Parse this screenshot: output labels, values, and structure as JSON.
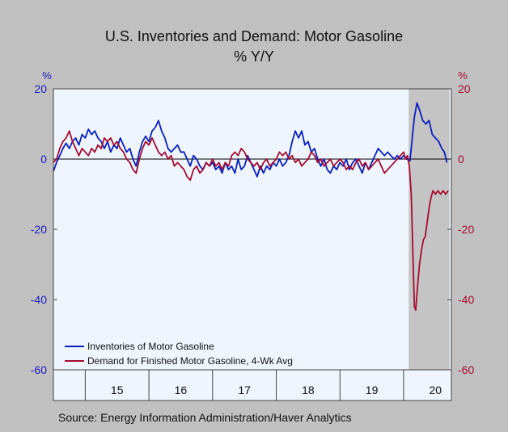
{
  "chart_data": {
    "type": "line",
    "title": "U.S. Inventories and Demand: Motor Gasoline",
    "subtitle": "% Y/Y",
    "left_unit": "%",
    "right_unit": "%",
    "ylim": [
      -60,
      20
    ],
    "yticks": [
      -60,
      -40,
      -20,
      0,
      20
    ],
    "x_range": [
      2014.5,
      2020.75
    ],
    "x_tick_labels": [
      {
        "label": "15",
        "x": 2015
      },
      {
        "label": "16",
        "x": 2016
      },
      {
        "label": "17",
        "x": 2017
      },
      {
        "label": "18",
        "x": 2018
      },
      {
        "label": "19",
        "x": 2019
      },
      {
        "label": "20",
        "x": 2020
      }
    ],
    "recession_shading": [
      2020.08,
      2020.72
    ],
    "grid": false,
    "legend_position": "bottom-left",
    "source": "Source:  Energy Information Administration/Haver Analytics",
    "colors": {
      "inventories": "#0a1fbf",
      "demand": "#a50c2e",
      "plot_bg": "#eef5fd",
      "page_bg": "#c0c0c0",
      "shade": "#c4c4c4",
      "left_axis": "#1a1abf",
      "right_axis": "#a50c2e"
    },
    "series": [
      {
        "name": "Inventories of Motor Gasoline",
        "color": "#0a1fbf",
        "points": [
          [
            2014.5,
            -3.5
          ],
          [
            2014.55,
            -1
          ],
          [
            2014.6,
            1
          ],
          [
            2014.65,
            3
          ],
          [
            2014.7,
            4.5
          ],
          [
            2014.75,
            3
          ],
          [
            2014.8,
            5
          ],
          [
            2014.85,
            6
          ],
          [
            2014.9,
            4
          ],
          [
            2014.95,
            7
          ],
          [
            2015.0,
            6
          ],
          [
            2015.05,
            8.5
          ],
          [
            2015.1,
            7
          ],
          [
            2015.15,
            8
          ],
          [
            2015.2,
            6
          ],
          [
            2015.25,
            5
          ],
          [
            2015.3,
            3
          ],
          [
            2015.35,
            5
          ],
          [
            2015.4,
            2
          ],
          [
            2015.45,
            4
          ],
          [
            2015.5,
            3
          ],
          [
            2015.55,
            6
          ],
          [
            2015.6,
            4
          ],
          [
            2015.65,
            2
          ],
          [
            2015.7,
            3
          ],
          [
            2015.75,
            0
          ],
          [
            2015.8,
            -2
          ],
          [
            2015.85,
            2
          ],
          [
            2015.9,
            5
          ],
          [
            2015.95,
            6.5
          ],
          [
            2016.0,
            5
          ],
          [
            2016.05,
            8
          ],
          [
            2016.1,
            9
          ],
          [
            2016.15,
            11
          ],
          [
            2016.2,
            8
          ],
          [
            2016.25,
            6
          ],
          [
            2016.3,
            3
          ],
          [
            2016.35,
            2
          ],
          [
            2016.4,
            3
          ],
          [
            2016.45,
            4
          ],
          [
            2016.5,
            2
          ],
          [
            2016.55,
            2
          ],
          [
            2016.6,
            0
          ],
          [
            2016.65,
            -2
          ],
          [
            2016.7,
            1
          ],
          [
            2016.75,
            0
          ],
          [
            2016.8,
            -2
          ],
          [
            2016.85,
            -3
          ],
          [
            2016.9,
            -1
          ],
          [
            2016.95,
            -2
          ],
          [
            2017.0,
            -1
          ],
          [
            2017.05,
            -3
          ],
          [
            2017.1,
            -2
          ],
          [
            2017.15,
            -4
          ],
          [
            2017.2,
            -1
          ],
          [
            2017.25,
            -3
          ],
          [
            2017.3,
            -2
          ],
          [
            2017.35,
            -4
          ],
          [
            2017.4,
            0
          ],
          [
            2017.45,
            -3
          ],
          [
            2017.5,
            -2
          ],
          [
            2017.55,
            1
          ],
          [
            2017.6,
            -1
          ],
          [
            2017.65,
            -3
          ],
          [
            2017.7,
            -5
          ],
          [
            2017.75,
            -2
          ],
          [
            2017.8,
            -4
          ],
          [
            2017.85,
            -2
          ],
          [
            2017.9,
            -3
          ],
          [
            2017.95,
            -1
          ],
          [
            2018.0,
            -2
          ],
          [
            2018.05,
            0
          ],
          [
            2018.1,
            -2
          ],
          [
            2018.15,
            -1
          ],
          [
            2018.2,
            1
          ],
          [
            2018.25,
            5
          ],
          [
            2018.3,
            8
          ],
          [
            2018.35,
            6
          ],
          [
            2018.4,
            8
          ],
          [
            2018.45,
            4
          ],
          [
            2018.5,
            5
          ],
          [
            2018.55,
            2
          ],
          [
            2018.6,
            3
          ],
          [
            2018.65,
            0
          ],
          [
            2018.7,
            -2
          ],
          [
            2018.75,
            0
          ],
          [
            2018.8,
            -3
          ],
          [
            2018.85,
            -4
          ],
          [
            2018.9,
            -2
          ],
          [
            2018.95,
            -3
          ],
          [
            2019.0,
            -1
          ],
          [
            2019.05,
            -2
          ],
          [
            2019.1,
            0
          ],
          [
            2019.15,
            -3
          ],
          [
            2019.2,
            -1
          ],
          [
            2019.25,
            0
          ],
          [
            2019.3,
            -2
          ],
          [
            2019.35,
            -4
          ],
          [
            2019.4,
            -1
          ],
          [
            2019.45,
            -3
          ],
          [
            2019.5,
            -1
          ],
          [
            2019.55,
            1
          ],
          [
            2019.6,
            3
          ],
          [
            2019.65,
            2
          ],
          [
            2019.7,
            1
          ],
          [
            2019.75,
            2
          ],
          [
            2019.8,
            1
          ],
          [
            2019.85,
            0
          ],
          [
            2019.9,
            1
          ],
          [
            2019.95,
            0
          ],
          [
            2020.0,
            1
          ],
          [
            2020.05,
            0
          ],
          [
            2020.1,
            -0.5
          ],
          [
            2020.13,
            5
          ],
          [
            2020.17,
            12
          ],
          [
            2020.21,
            16
          ],
          [
            2020.25,
            14
          ],
          [
            2020.3,
            11
          ],
          [
            2020.35,
            10
          ],
          [
            2020.4,
            11
          ],
          [
            2020.45,
            7
          ],
          [
            2020.5,
            6
          ],
          [
            2020.55,
            5
          ],
          [
            2020.6,
            3
          ],
          [
            2020.64,
            2
          ],
          [
            2020.68,
            -1
          ]
        ]
      },
      {
        "name": "Demand for Finished Motor Gasoline, 4-Wk Avg",
        "color": "#a50c2e",
        "points": [
          [
            2014.5,
            -1
          ],
          [
            2014.55,
            0
          ],
          [
            2014.6,
            3
          ],
          [
            2014.65,
            5
          ],
          [
            2014.7,
            6
          ],
          [
            2014.75,
            8
          ],
          [
            2014.8,
            5
          ],
          [
            2014.85,
            3
          ],
          [
            2014.9,
            1
          ],
          [
            2014.95,
            3
          ],
          [
            2015.0,
            2
          ],
          [
            2015.05,
            1
          ],
          [
            2015.1,
            3
          ],
          [
            2015.15,
            2
          ],
          [
            2015.2,
            4
          ],
          [
            2015.25,
            3
          ],
          [
            2015.3,
            6
          ],
          [
            2015.35,
            5
          ],
          [
            2015.4,
            6
          ],
          [
            2015.45,
            4
          ],
          [
            2015.5,
            5
          ],
          [
            2015.55,
            3
          ],
          [
            2015.6,
            2
          ],
          [
            2015.65,
            0
          ],
          [
            2015.7,
            -1
          ],
          [
            2015.75,
            -3
          ],
          [
            2015.8,
            -4
          ],
          [
            2015.85,
            0
          ],
          [
            2015.9,
            3
          ],
          [
            2015.95,
            5
          ],
          [
            2016.0,
            4
          ],
          [
            2016.05,
            6
          ],
          [
            2016.1,
            4
          ],
          [
            2016.15,
            2
          ],
          [
            2016.2,
            1
          ],
          [
            2016.25,
            2
          ],
          [
            2016.3,
            0
          ],
          [
            2016.35,
            1
          ],
          [
            2016.4,
            -2
          ],
          [
            2016.45,
            -1
          ],
          [
            2016.5,
            -2
          ],
          [
            2016.55,
            -3
          ],
          [
            2016.6,
            -5
          ],
          [
            2016.65,
            -6
          ],
          [
            2016.7,
            -3
          ],
          [
            2016.75,
            -2
          ],
          [
            2016.8,
            -4
          ],
          [
            2016.85,
            -3
          ],
          [
            2016.9,
            -1
          ],
          [
            2016.95,
            -2
          ],
          [
            2017.0,
            0
          ],
          [
            2017.05,
            -2
          ],
          [
            2017.1,
            -1
          ],
          [
            2017.15,
            -3
          ],
          [
            2017.2,
            -1
          ],
          [
            2017.25,
            -2
          ],
          [
            2017.3,
            1
          ],
          [
            2017.35,
            2
          ],
          [
            2017.4,
            1
          ],
          [
            2017.45,
            3
          ],
          [
            2017.5,
            2
          ],
          [
            2017.55,
            0
          ],
          [
            2017.6,
            -1
          ],
          [
            2017.65,
            -2
          ],
          [
            2017.7,
            -1
          ],
          [
            2017.75,
            -3
          ],
          [
            2017.8,
            -1
          ],
          [
            2017.85,
            0
          ],
          [
            2017.9,
            -2
          ],
          [
            2017.95,
            -1
          ],
          [
            2018.0,
            0
          ],
          [
            2018.05,
            2
          ],
          [
            2018.1,
            1
          ],
          [
            2018.15,
            2
          ],
          [
            2018.2,
            0
          ],
          [
            2018.25,
            1
          ],
          [
            2018.3,
            -1
          ],
          [
            2018.35,
            0
          ],
          [
            2018.4,
            -2
          ],
          [
            2018.45,
            -1
          ],
          [
            2018.5,
            0
          ],
          [
            2018.55,
            2
          ],
          [
            2018.6,
            1
          ],
          [
            2018.65,
            -1
          ],
          [
            2018.7,
            0
          ],
          [
            2018.75,
            -2
          ],
          [
            2018.8,
            -1
          ],
          [
            2018.85,
            0
          ],
          [
            2018.9,
            -2
          ],
          [
            2018.95,
            -1
          ],
          [
            2019.0,
            0
          ],
          [
            2019.05,
            -1
          ],
          [
            2019.1,
            -3
          ],
          [
            2019.15,
            -2
          ],
          [
            2019.2,
            -3
          ],
          [
            2019.25,
            -1
          ],
          [
            2019.3,
            0
          ],
          [
            2019.35,
            -2
          ],
          [
            2019.4,
            -1
          ],
          [
            2019.45,
            -3
          ],
          [
            2019.5,
            -2
          ],
          [
            2019.55,
            -1
          ],
          [
            2019.6,
            0
          ],
          [
            2019.65,
            -2
          ],
          [
            2019.7,
            -4
          ],
          [
            2019.75,
            -3
          ],
          [
            2019.8,
            -2
          ],
          [
            2019.85,
            -1
          ],
          [
            2019.9,
            0
          ],
          [
            2019.95,
            1
          ],
          [
            2020.0,
            2
          ],
          [
            2020.03,
            0
          ],
          [
            2020.06,
            1
          ],
          [
            2020.09,
            -2
          ],
          [
            2020.12,
            -10
          ],
          [
            2020.15,
            -30
          ],
          [
            2020.17,
            -42
          ],
          [
            2020.19,
            -43
          ],
          [
            2020.22,
            -36
          ],
          [
            2020.25,
            -30
          ],
          [
            2020.28,
            -26
          ],
          [
            2020.31,
            -23
          ],
          [
            2020.34,
            -22
          ],
          [
            2020.37,
            -18
          ],
          [
            2020.4,
            -14
          ],
          [
            2020.43,
            -11
          ],
          [
            2020.46,
            -9
          ],
          [
            2020.5,
            -10
          ],
          [
            2020.54,
            -9
          ],
          [
            2020.58,
            -10
          ],
          [
            2020.62,
            -9
          ],
          [
            2020.66,
            -10
          ],
          [
            2020.7,
            -9
          ]
        ]
      }
    ]
  }
}
